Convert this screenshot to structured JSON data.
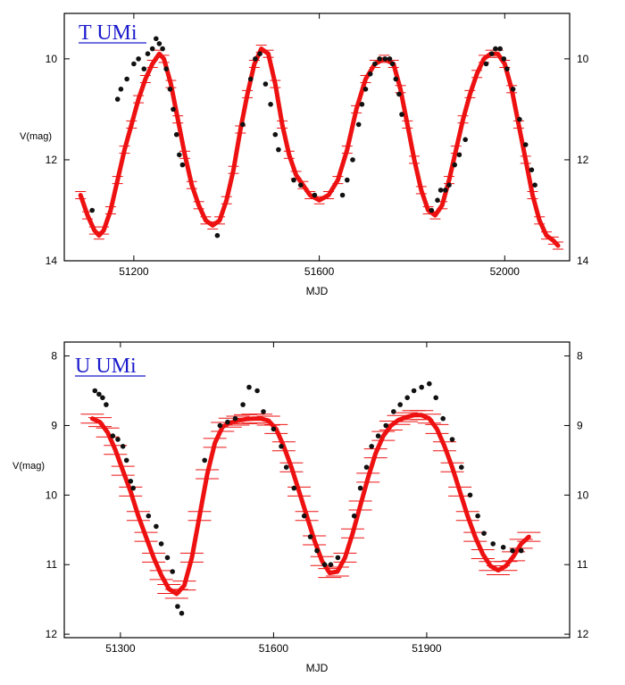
{
  "chart_data": [
    {
      "type": "scatter",
      "title": "T UMi",
      "xlabel": "MJD",
      "ylabel": "V(mag)",
      "xlim": [
        51050,
        52140
      ],
      "ylim": [
        14,
        9.1
      ],
      "y_inverted": true,
      "x_ticks": [
        51200,
        51600,
        52000
      ],
      "x_tick_labels": [
        "51200",
        "51600",
        "52000"
      ],
      "y_ticks": [
        10,
        12,
        14
      ],
      "y_tick_labels": [
        "10",
        "12",
        "14"
      ],
      "mirrored_right_axis": true,
      "colors": {
        "observations": "#111111",
        "model": "#ee1111"
      },
      "series": [
        {
          "role": "observations",
          "marker": "dot",
          "points": [
            [
              51110,
              13.0
            ],
            [
              51165,
              10.8
            ],
            [
              51172,
              10.6
            ],
            [
              51185,
              10.4
            ],
            [
              51200,
              10.1
            ],
            [
              51210,
              10.0
            ],
            [
              51222,
              10.2
            ],
            [
              51230,
              9.9
            ],
            [
              51240,
              9.8
            ],
            [
              51248,
              9.6
            ],
            [
              51255,
              9.7
            ],
            [
              51262,
              9.8
            ],
            [
              51270,
              10.2
            ],
            [
              51278,
              10.6
            ],
            [
              51285,
              11.0
            ],
            [
              51292,
              11.5
            ],
            [
              51298,
              11.9
            ],
            [
              51305,
              12.1
            ],
            [
              51380,
              13.5
            ],
            [
              51435,
              11.3
            ],
            [
              51452,
              10.4
            ],
            [
              51462,
              10.0
            ],
            [
              51472,
              9.9
            ],
            [
              51484,
              10.5
            ],
            [
              51495,
              10.9
            ],
            [
              51505,
              11.5
            ],
            [
              51512,
              11.8
            ],
            [
              51545,
              12.4
            ],
            [
              51560,
              12.5
            ],
            [
              51590,
              12.7
            ],
            [
              51650,
              12.7
            ],
            [
              51660,
              12.4
            ],
            [
              51672,
              12.0
            ],
            [
              51685,
              11.3
            ],
            [
              51692,
              10.9
            ],
            [
              51700,
              10.6
            ],
            [
              51710,
              10.3
            ],
            [
              51720,
              10.1
            ],
            [
              51730,
              10.0
            ],
            [
              51742,
              10.0
            ],
            [
              51752,
              10.0
            ],
            [
              51758,
              10.1
            ],
            [
              51765,
              10.4
            ],
            [
              51772,
              10.7
            ],
            [
              51778,
              11.1
            ],
            [
              51842,
              13.0
            ],
            [
              51855,
              12.8
            ],
            [
              51862,
              12.6
            ],
            [
              51872,
              12.6
            ],
            [
              51880,
              12.5
            ],
            [
              51892,
              12.1
            ],
            [
              51902,
              11.9
            ],
            [
              51915,
              11.6
            ],
            [
              51960,
              10.1
            ],
            [
              51972,
              9.9
            ],
            [
              51980,
              9.8
            ],
            [
              51990,
              9.8
            ],
            [
              51998,
              10.0
            ],
            [
              52005,
              10.2
            ],
            [
              52018,
              10.6
            ],
            [
              52032,
              11.2
            ],
            [
              52045,
              11.7
            ],
            [
              52058,
              12.2
            ],
            [
              52065,
              12.5
            ]
          ]
        },
        {
          "role": "model",
          "marker": "red-curve-with-bars",
          "points": [
            [
              51085,
              12.7
            ],
            [
              51100,
              13.1
            ],
            [
              51115,
              13.4
            ],
            [
              51125,
              13.5
            ],
            [
              51135,
              13.4
            ],
            [
              51150,
              13.0
            ],
            [
              51165,
              12.4
            ],
            [
              51180,
              11.8
            ],
            [
              51195,
              11.3
            ],
            [
              51210,
              10.8
            ],
            [
              51225,
              10.4
            ],
            [
              51240,
              10.1
            ],
            [
              51255,
              9.9
            ],
            [
              51265,
              10.0
            ],
            [
              51280,
              10.5
            ],
            [
              51295,
              11.2
            ],
            [
              51310,
              11.9
            ],
            [
              51325,
              12.5
            ],
            [
              51340,
              12.9
            ],
            [
              51355,
              13.2
            ],
            [
              51370,
              13.3
            ],
            [
              51385,
              13.2
            ],
            [
              51400,
              12.8
            ],
            [
              51415,
              12.2
            ],
            [
              51430,
              11.4
            ],
            [
              51445,
              10.7
            ],
            [
              51460,
              10.1
            ],
            [
              51475,
              9.8
            ],
            [
              51490,
              9.9
            ],
            [
              51505,
              10.5
            ],
            [
              51520,
              11.3
            ],
            [
              51535,
              11.9
            ],
            [
              51550,
              12.3
            ],
            [
              51565,
              12.5
            ],
            [
              51580,
              12.7
            ],
            [
              51600,
              12.8
            ],
            [
              51620,
              12.7
            ],
            [
              51640,
              12.4
            ],
            [
              51660,
              11.8
            ],
            [
              51680,
              11.0
            ],
            [
              51700,
              10.4
            ],
            [
              51720,
              10.1
            ],
            [
              51740,
              10.0
            ],
            [
              51760,
              10.1
            ],
            [
              51775,
              10.6
            ],
            [
              51790,
              11.3
            ],
            [
              51805,
              12.0
            ],
            [
              51820,
              12.6
            ],
            [
              51835,
              13.0
            ],
            [
              51850,
              13.1
            ],
            [
              51865,
              12.9
            ],
            [
              51880,
              12.4
            ],
            [
              51895,
              11.8
            ],
            [
              51910,
              11.2
            ],
            [
              51925,
              10.7
            ],
            [
              51940,
              10.3
            ],
            [
              51955,
              10.0
            ],
            [
              51970,
              9.9
            ],
            [
              51985,
              9.9
            ],
            [
              52000,
              10.1
            ],
            [
              52015,
              10.6
            ],
            [
              52030,
              11.3
            ],
            [
              52045,
              12.0
            ],
            [
              52060,
              12.7
            ],
            [
              52075,
              13.2
            ],
            [
              52090,
              13.5
            ],
            [
              52105,
              13.6
            ],
            [
              52115,
              13.7
            ]
          ]
        }
      ]
    },
    {
      "type": "scatter",
      "title": "U UMi",
      "xlabel": "MJD",
      "ylabel": "V(mag)",
      "xlim": [
        51190,
        52180
      ],
      "ylim": [
        12.05,
        7.8
      ],
      "y_inverted": true,
      "x_ticks": [
        51300,
        51600,
        51900
      ],
      "x_tick_labels": [
        "51300",
        "51600",
        "51900"
      ],
      "y_ticks": [
        8,
        9,
        10,
        11,
        12
      ],
      "y_tick_labels": [
        "8",
        "9",
        "10",
        "11",
        "12"
      ],
      "mirrored_right_axis": true,
      "colors": {
        "observations": "#111111",
        "model": "#ee1111"
      },
      "series": [
        {
          "role": "observations",
          "marker": "dot",
          "points": [
            [
              51250,
              8.5
            ],
            [
              51258,
              8.55
            ],
            [
              51265,
              8.6
            ],
            [
              51272,
              8.7
            ],
            [
              51285,
              9.15
            ],
            [
              51295,
              9.2
            ],
            [
              51305,
              9.3
            ],
            [
              51312,
              9.5
            ],
            [
              51320,
              9.8
            ],
            [
              51325,
              9.9
            ],
            [
              51355,
              10.3
            ],
            [
              51370,
              10.45
            ],
            [
              51380,
              10.7
            ],
            [
              51392,
              10.9
            ],
            [
              51402,
              11.1
            ],
            [
              51412,
              11.6
            ],
            [
              51420,
              11.7
            ],
            [
              51465,
              9.5
            ],
            [
              51495,
              9.0
            ],
            [
              51510,
              8.95
            ],
            [
              51525,
              8.9
            ],
            [
              51540,
              8.7
            ],
            [
              51552,
              8.45
            ],
            [
              51568,
              8.5
            ],
            [
              51580,
              8.8
            ],
            [
              51600,
              9.05
            ],
            [
              51615,
              9.3
            ],
            [
              51625,
              9.6
            ],
            [
              51640,
              9.9
            ],
            [
              51660,
              10.3
            ],
            [
              51672,
              10.6
            ],
            [
              51685,
              10.8
            ],
            [
              51700,
              11.0
            ],
            [
              51712,
              11.0
            ],
            [
              51726,
              10.9
            ],
            [
              51758,
              10.3
            ],
            [
              51770,
              9.9
            ],
            [
              51782,
              9.6
            ],
            [
              51792,
              9.3
            ],
            [
              51805,
              9.15
            ],
            [
              51820,
              9.0
            ],
            [
              51835,
              8.8
            ],
            [
              51848,
              8.7
            ],
            [
              51862,
              8.6
            ],
            [
              51875,
              8.5
            ],
            [
              51890,
              8.45
            ],
            [
              51905,
              8.4
            ],
            [
              51918,
              8.6
            ],
            [
              51932,
              8.9
            ],
            [
              51950,
              9.2
            ],
            [
              51968,
              9.6
            ],
            [
              51985,
              10.0
            ],
            [
              52000,
              10.3
            ],
            [
              52012,
              10.55
            ],
            [
              52030,
              10.7
            ],
            [
              52050,
              10.75
            ],
            [
              52068,
              10.8
            ],
            [
              52085,
              10.8
            ]
          ]
        },
        {
          "role": "model",
          "marker": "red-curve-with-bars",
          "points": [
            [
              51245,
              8.9
            ],
            [
              51260,
              8.95
            ],
            [
              51275,
              9.1
            ],
            [
              51290,
              9.35
            ],
            [
              51305,
              9.65
            ],
            [
              51320,
              9.95
            ],
            [
              51335,
              10.3
            ],
            [
              51350,
              10.6
            ],
            [
              51365,
              10.9
            ],
            [
              51380,
              11.15
            ],
            [
              51395,
              11.35
            ],
            [
              51410,
              11.42
            ],
            [
              51425,
              11.3
            ],
            [
              51440,
              10.9
            ],
            [
              51455,
              10.3
            ],
            [
              51470,
              9.7
            ],
            [
              51485,
              9.25
            ],
            [
              51500,
              9.02
            ],
            [
              51515,
              8.96
            ],
            [
              51530,
              8.93
            ],
            [
              51545,
              8.91
            ],
            [
              51560,
              8.9
            ],
            [
              51575,
              8.9
            ],
            [
              51590,
              8.93
            ],
            [
              51605,
              9.05
            ],
            [
              51620,
              9.3
            ],
            [
              51635,
              9.6
            ],
            [
              51650,
              9.95
            ],
            [
              51665,
              10.3
            ],
            [
              51680,
              10.65
            ],
            [
              51695,
              10.95
            ],
            [
              51710,
              11.12
            ],
            [
              51725,
              11.1
            ],
            [
              51740,
              10.9
            ],
            [
              51755,
              10.55
            ],
            [
              51770,
              10.15
            ],
            [
              51785,
              9.75
            ],
            [
              51800,
              9.4
            ],
            [
              51815,
              9.15
            ],
            [
              51830,
              9.0
            ],
            [
              51845,
              8.92
            ],
            [
              51860,
              8.88
            ],
            [
              51875,
              8.85
            ],
            [
              51890,
              8.85
            ],
            [
              51905,
              8.9
            ],
            [
              51920,
              9.05
            ],
            [
              51935,
              9.3
            ],
            [
              51950,
              9.6
            ],
            [
              51965,
              9.95
            ],
            [
              51980,
              10.3
            ],
            [
              51995,
              10.6
            ],
            [
              52010,
              10.85
            ],
            [
              52025,
              11.02
            ],
            [
              52040,
              11.08
            ],
            [
              52055,
              11.02
            ],
            [
              52070,
              10.88
            ],
            [
              52085,
              10.7
            ],
            [
              52100,
              10.6
            ]
          ]
        }
      ]
    }
  ]
}
